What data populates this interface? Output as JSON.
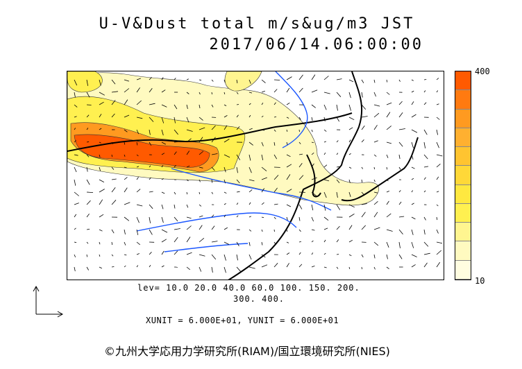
{
  "title_line1": "U-V&Dust total m/s&ug/m3 JST",
  "title_line2": "2017/06/14.06:00:00",
  "colorbar": {
    "max_label": "400",
    "min_label": "10",
    "colors": [
      "#ff5a00",
      "#ff7a10",
      "#ff9a20",
      "#ffb030",
      "#ffc430",
      "#ffd838",
      "#ffe840",
      "#fff050",
      "#fff590",
      "#fffac0",
      "#fffde0"
    ]
  },
  "levels_line1": "lev= 10.0 20.0 40.0 60.0 100. 150. 200.",
  "levels_line2": "300. 400.",
  "unit_text": "XUNIT = 6.000E+01, YUNIT = 6.000E+01",
  "copyright": "©九州大学応用力学研究所(RIAM)/国立環境研究所(NIES)"
}
